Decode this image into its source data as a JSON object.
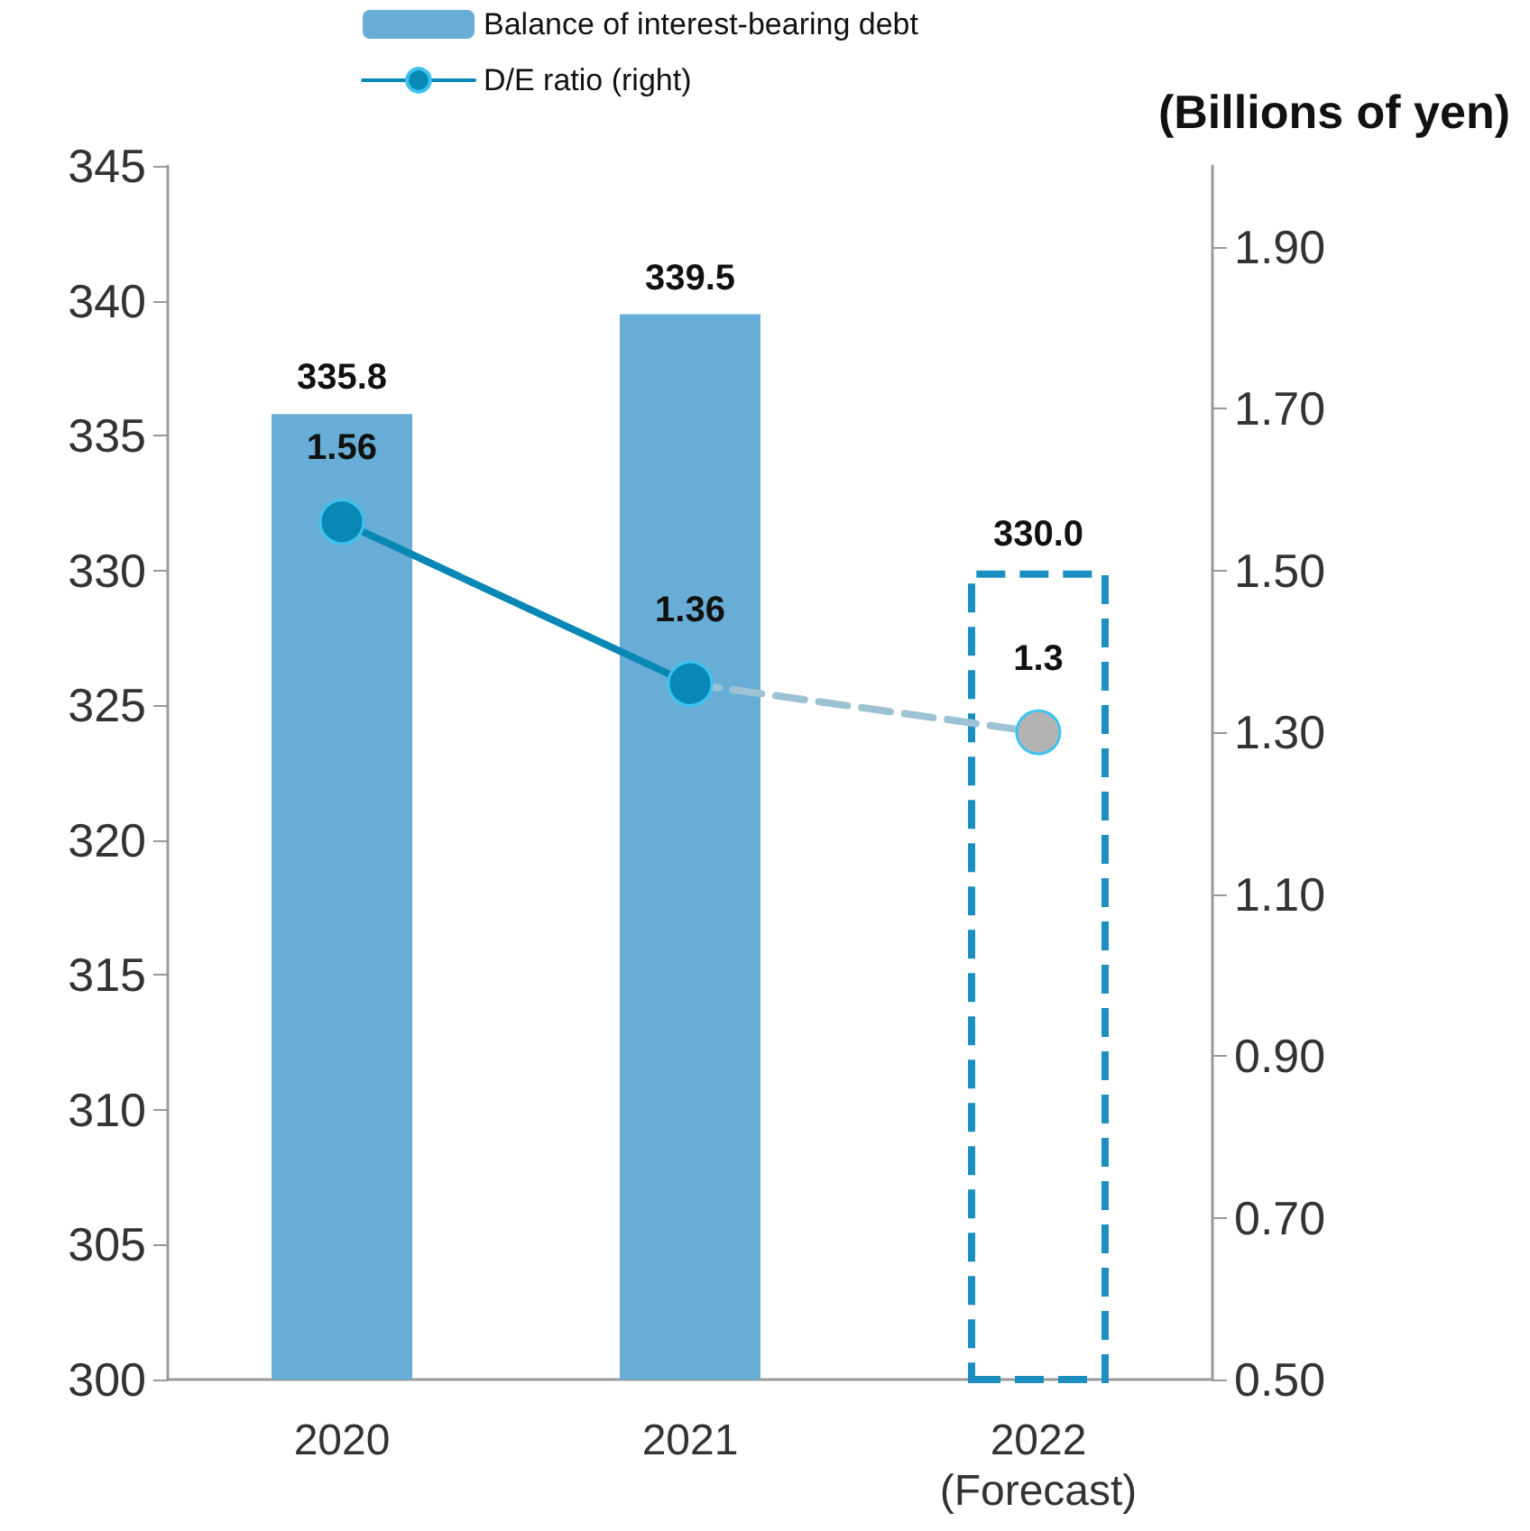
{
  "chart_data": {
    "type": "bar",
    "title": "(Billions of yen)",
    "categories": [
      "2020",
      "2021",
      "2022\n(Forecast)"
    ],
    "series": [
      {
        "name": "Balance of interest-bearing debt",
        "color": "#67add5",
        "values": [
          335.8,
          339.5,
          null
        ],
        "value_labels": [
          "335.8",
          "339.5",
          null
        ]
      },
      {
        "color": "#1a8fc0",
        "line_style": "dashed",
        "values": [
          null,
          null,
          330.0
        ],
        "value_labels": [
          null,
          null,
          "330.0"
        ]
      },
      {
        "name": "D/E ratio (right)",
        "type": "line",
        "axis": "y2",
        "color": "#0a88b5",
        "values": [
          1.56,
          1.36,
          null
        ],
        "value_labels": [
          "1.56",
          "1.36",
          null
        ]
      },
      {
        "type": "line",
        "axis": "y2",
        "color": "#9cc2d3",
        "line_style": "dashed",
        "colors": [
          "#0a88b5",
          "#0a88b5",
          "#b3b3b3"
        ],
        "values": [
          null,
          1.36,
          1.3
        ],
        "value_labels": [
          null,
          null,
          "1.3"
        ]
      }
    ],
    "ylim": [
      300,
      345
    ],
    "yticks": [
      300,
      305,
      310,
      315,
      320,
      325,
      330,
      335,
      340,
      345
    ],
    "y2lim": [
      0.5,
      2.0
    ],
    "y2ticks": [
      {
        "value": 0.5,
        "label": "0.50"
      },
      {
        "value": 0.7,
        "label": "0.70"
      },
      {
        "value": 0.9,
        "label": "0.90"
      },
      {
        "value": 1.1,
        "label": "1.10"
      },
      {
        "value": 1.3,
        "label": "1.30"
      },
      {
        "value": 1.5,
        "label": "1.50"
      },
      {
        "value": 1.7,
        "label": "1.70"
      },
      {
        "value": 1.9,
        "label": "1.90"
      }
    ],
    "legend": "top",
    "marker": "circle"
  }
}
